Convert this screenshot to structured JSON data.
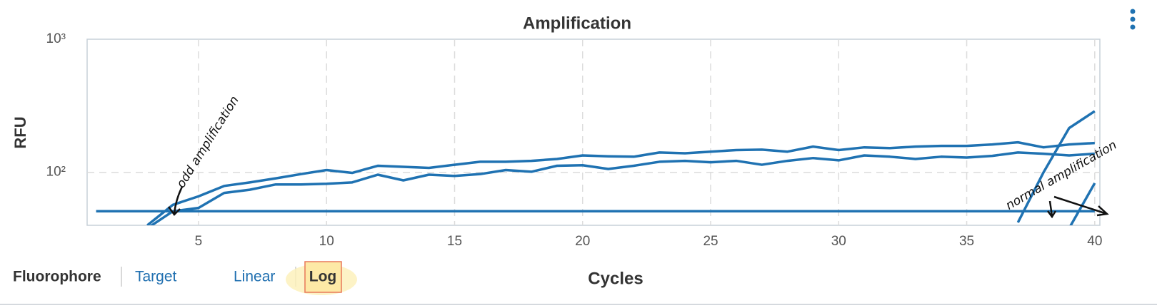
{
  "chart_data": {
    "type": "line",
    "title": "Amplification",
    "xlabel": "Cycles",
    "ylabel": "RFU",
    "x": [
      1,
      2,
      3,
      4,
      5,
      6,
      7,
      8,
      9,
      10,
      11,
      12,
      13,
      14,
      15,
      16,
      17,
      18,
      19,
      20,
      21,
      22,
      23,
      24,
      25,
      26,
      27,
      28,
      29,
      30,
      31,
      32,
      33,
      34,
      35,
      36,
      37,
      38,
      39,
      40
    ],
    "series": [
      {
        "color": "#1f72b2",
        "values": [
          51,
          51,
          51,
          51,
          51,
          51,
          51,
          51,
          51,
          51,
          51,
          51,
          51,
          51,
          51,
          51,
          51,
          51,
          51,
          51,
          51,
          51,
          51,
          51,
          51,
          51,
          51,
          51,
          51,
          51,
          51,
          51,
          51,
          51,
          51,
          51,
          51,
          51,
          51,
          51
        ]
      },
      {
        "color": "#1f72b2",
        "values": [
          null,
          null,
          40,
          57,
          66,
          79,
          84,
          90,
          97,
          104,
          99,
          112,
          110,
          108,
          114,
          120,
          120,
          122,
          126,
          134,
          132,
          131,
          141,
          139,
          143,
          147,
          148,
          143,
          156,
          147,
          154,
          152,
          156,
          158,
          158,
          162,
          168,
          154,
          162,
          166
        ]
      },
      {
        "color": "#1f72b2",
        "values": [
          null,
          null,
          38,
          51,
          54,
          70,
          74,
          81,
          81,
          82,
          84,
          96,
          87,
          96,
          94,
          97,
          104,
          101,
          112,
          113,
          106,
          112,
          120,
          122,
          119,
          122,
          114,
          122,
          128,
          123,
          134,
          131,
          126,
          131,
          129,
          133,
          141,
          138,
          134,
          138
        ]
      },
      {
        "color": "#1f72b2",
        "values": [
          null,
          null,
          null,
          null,
          null,
          null,
          null,
          null,
          null,
          null,
          null,
          null,
          null,
          null,
          null,
          null,
          null,
          null,
          null,
          null,
          null,
          null,
          null,
          null,
          null,
          null,
          null,
          null,
          null,
          null,
          null,
          null,
          null,
          null,
          null,
          null,
          42,
          100,
          215,
          288
        ]
      },
      {
        "color": "#1f72b2",
        "values": [
          null,
          null,
          null,
          null,
          null,
          null,
          null,
          null,
          null,
          null,
          null,
          null,
          null,
          null,
          null,
          null,
          null,
          null,
          null,
          null,
          null,
          null,
          null,
          null,
          null,
          null,
          null,
          null,
          null,
          null,
          null,
          null,
          null,
          null,
          null,
          null,
          null,
          null,
          38,
          83
        ]
      }
    ],
    "xlim": [
      0.65,
      40.2
    ],
    "xticks": [
      5,
      10,
      15,
      20,
      25,
      30,
      35,
      40
    ],
    "ylim": [
      40,
      1000
    ],
    "yticks": [
      {
        "value": 100,
        "label": "10²"
      },
      {
        "value": 1000,
        "label": "10³"
      }
    ],
    "log_y": true,
    "grid": true,
    "annotations": [
      "odd amplification",
      "normal amplification"
    ]
  },
  "toolbar": {
    "items": [
      "Fluorophore",
      "Target",
      "Linear",
      "Log"
    ],
    "selected": "Log"
  }
}
